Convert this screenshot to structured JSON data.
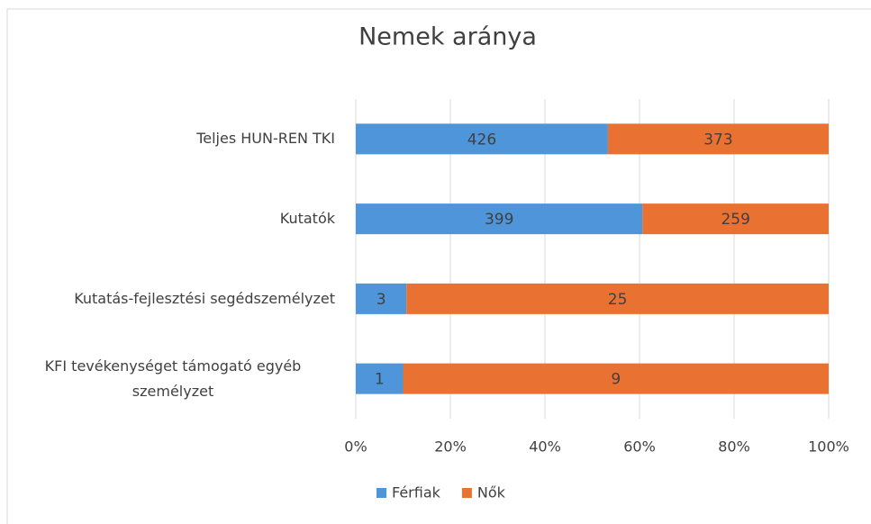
{
  "chart_data": {
    "type": "bar",
    "orientation": "horizontal",
    "stacked": "percent",
    "title": "Nemek aránya",
    "categories": [
      "Teljes HUN-REN TKI",
      "Kutatók",
      "Kutatás-fejlesztési segédszemélyzet",
      "KFI tevékenységet támogató egyéb személyzet"
    ],
    "series": [
      {
        "name": "Férfiak",
        "color": "#4e95d9",
        "values": [
          426,
          399,
          3,
          1
        ]
      },
      {
        "name": "Nők",
        "color": "#e97132",
        "values": [
          373,
          259,
          25,
          9
        ]
      }
    ],
    "xlim": [
      0,
      100
    ],
    "xticks": [
      {
        "value": 0,
        "label": "0%"
      },
      {
        "value": 20,
        "label": "20%"
      },
      {
        "value": 40,
        "label": "40%"
      },
      {
        "value": 60,
        "label": "60%"
      },
      {
        "value": 80,
        "label": "80%"
      },
      {
        "value": 100,
        "label": "100%"
      }
    ],
    "grid": true,
    "legend": "bottom"
  }
}
